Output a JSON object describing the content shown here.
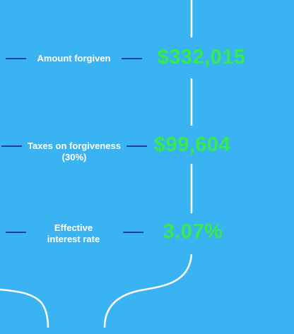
{
  "stats": [
    {
      "label": "Amount forgiven",
      "value": "$332,015"
    },
    {
      "label": "Taxes on forgiveness (30%)",
      "value": "$99,604"
    },
    {
      "label": "Effective interest rate",
      "value": "3.07%"
    }
  ],
  "colors": {
    "background": "#3ab3f2",
    "value": "#35e95a",
    "label": "#ffffff",
    "dash": "#1f3fa8",
    "line": "#ffffff"
  }
}
